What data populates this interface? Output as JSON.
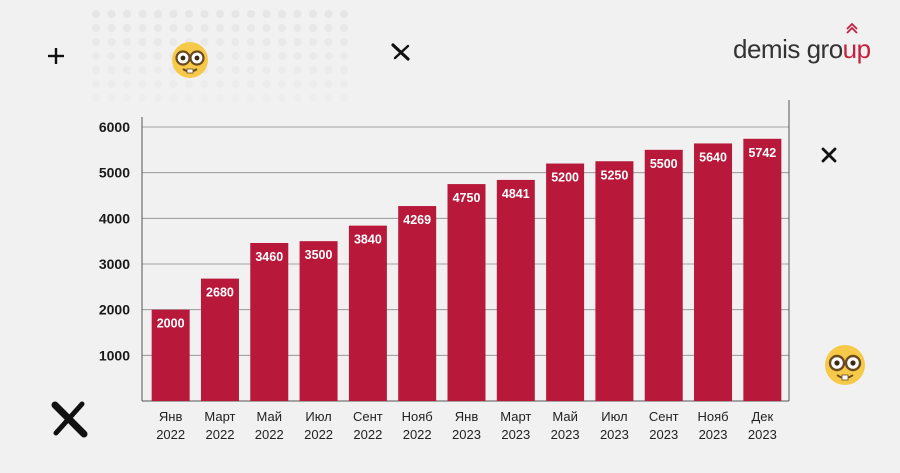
{
  "brand": {
    "logo_main": "demis gro",
    "logo_accent": "up",
    "accent_color": "#c4213f"
  },
  "decorations": [
    "plus-icon",
    "cross-icon",
    "nerd-face-emoji-icon"
  ],
  "chart_data": {
    "type": "bar",
    "title": "",
    "xlabel": "",
    "ylabel": "",
    "ylim": [
      0,
      6000
    ],
    "yticks": [
      1000,
      2000,
      3000,
      4000,
      5000,
      6000
    ],
    "grid": true,
    "bar_color": "#b8193a",
    "categories": [
      [
        "Янв",
        "2022"
      ],
      [
        "Март",
        "2022"
      ],
      [
        "Май",
        "2022"
      ],
      [
        "Июл",
        "2022"
      ],
      [
        "Сент",
        "2022"
      ],
      [
        "Нояб",
        "2022"
      ],
      [
        "Янв",
        "2023"
      ],
      [
        "Март",
        "2023"
      ],
      [
        "Май",
        "2023"
      ],
      [
        "Июл",
        "2023"
      ],
      [
        "Сент",
        "2023"
      ],
      [
        "Нояб",
        "2023"
      ],
      [
        "Дек",
        "2023"
      ]
    ],
    "values": [
      2000,
      2680,
      3460,
      3500,
      3840,
      4269,
      4750,
      4841,
      5200,
      5250,
      5500,
      5640,
      5742
    ],
    "labels": [
      "2000",
      "2680",
      "3460",
      "3500",
      "3840",
      "4269",
      "4750",
      "4841",
      "5200",
      "5250",
      "5500",
      "5640",
      "5742"
    ]
  }
}
